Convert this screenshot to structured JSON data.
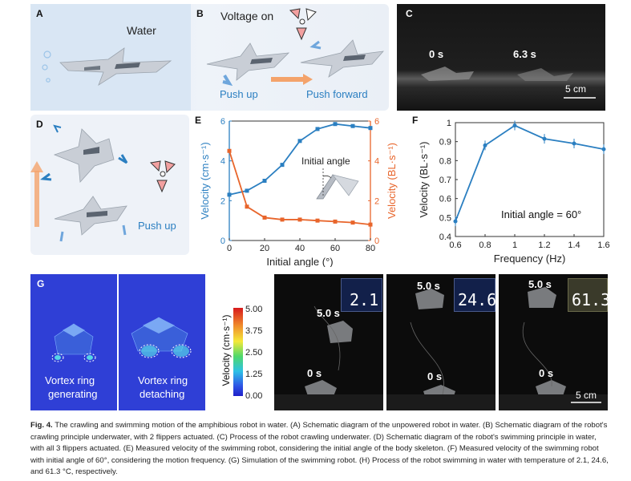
{
  "panels": {
    "a": {
      "label": "A",
      "water": "Water"
    },
    "b": {
      "label": "B",
      "voltage": "Voltage on",
      "push_up": "Push up",
      "push_forward": "Push forward"
    },
    "c": {
      "label": "C",
      "t0": "0 s",
      "t1": "6.3 s",
      "scale": "5 cm"
    },
    "d": {
      "label": "D",
      "push_up": "Push up"
    },
    "e": {
      "label": "E",
      "annotation": "Initial angle"
    },
    "f": {
      "label": "F",
      "annotation": "Initial angle = 60°"
    },
    "g": {
      "label": "G",
      "left_l1": "Vortex ring",
      "left_l2": "generating",
      "right_l1": "Vortex ring",
      "right_l2": "detaching",
      "colorbar_title": "Velocity (cm·s⁻¹)",
      "colorbar_ticks": [
        "5.00",
        "3.75",
        "2.50",
        "1.25",
        "0.00"
      ]
    },
    "h": {
      "label": "H",
      "scale": "5 cm",
      "frames": [
        {
          "t_top": "5.0 s",
          "t_bot": "0 s",
          "temp": "2.1"
        },
        {
          "t_top": "5.0 s",
          "t_bot": "0 s",
          "temp": "24.6"
        },
        {
          "t_top": "5.0 s",
          "t_bot": "0 s",
          "temp": "61.3"
        }
      ]
    }
  },
  "chart_data": [
    {
      "type": "line",
      "panel": "E",
      "xlabel": "Initial angle (°)",
      "ylabel_left": "Velocity (cm·s⁻¹)",
      "ylabel_right": "Velocity (BL·s⁻¹)",
      "xlim": [
        0,
        80
      ],
      "ylim_left": [
        0,
        6
      ],
      "ylim_right": [
        0,
        6
      ],
      "x_ticks": [
        "0",
        "20",
        "40",
        "60",
        "80"
      ],
      "y_ticks_left": [
        "0",
        "2",
        "4",
        "6"
      ],
      "y_ticks_right": [
        "0",
        "2",
        "4",
        "6"
      ],
      "series": [
        {
          "axis": "left",
          "color": "#2b7fc1",
          "x": [
            0,
            10,
            20,
            30,
            40,
            50,
            60,
            70,
            80
          ],
          "values": [
            2.3,
            2.5,
            3.0,
            3.8,
            5.0,
            5.6,
            5.85,
            5.75,
            5.65
          ]
        },
        {
          "axis": "right",
          "color": "#e8652b",
          "x": [
            0,
            10,
            20,
            30,
            40,
            50,
            60,
            70,
            80
          ],
          "values": [
            4.5,
            1.7,
            1.15,
            1.05,
            1.05,
            1.0,
            0.95,
            0.9,
            0.8
          ]
        }
      ]
    },
    {
      "type": "line",
      "panel": "F",
      "xlabel": "Frequency (Hz)",
      "ylabel": "Velocity (BL·s⁻¹)",
      "xlim": [
        0.6,
        1.6
      ],
      "ylim": [
        0.4,
        1.0
      ],
      "x_ticks": [
        "0.6",
        "0.8",
        "1",
        "1.2",
        "1.4",
        "1.6"
      ],
      "y_ticks": [
        "0.4",
        "0.5",
        "0.6",
        "0.7",
        "0.8",
        "0.9",
        "1"
      ],
      "series": [
        {
          "color": "#2b7fc1",
          "x": [
            0.6,
            0.8,
            1.0,
            1.2,
            1.4,
            1.6
          ],
          "values": [
            0.48,
            0.88,
            0.985,
            0.915,
            0.89,
            0.86
          ]
        }
      ]
    }
  ],
  "caption": {
    "fig": "Fig. 4.",
    "text": " The crawling and swimming motion of the amphibious robot in water. (A) Schematic diagram of the unpowered robot in water. (B) Schematic diagram of the robot's crawling principle underwater, with 2 flippers actuated. (C) Process of the robot crawling underwater. (D) Schematic diagram of the robot's swimming principle in water, with all 3 flippers actuated. (E) Measured velocity of the swimming robot, considering the initial angle of the body skeleton. (F) Measured velocity of the swimming robot with initial angle of 60°, considering the motion frequency. (G) Simulation of the swimming robot. (H) Process of the robot swimming in water with temperature of 2.1, 24.6, and 61.3 °C, respectively."
  }
}
